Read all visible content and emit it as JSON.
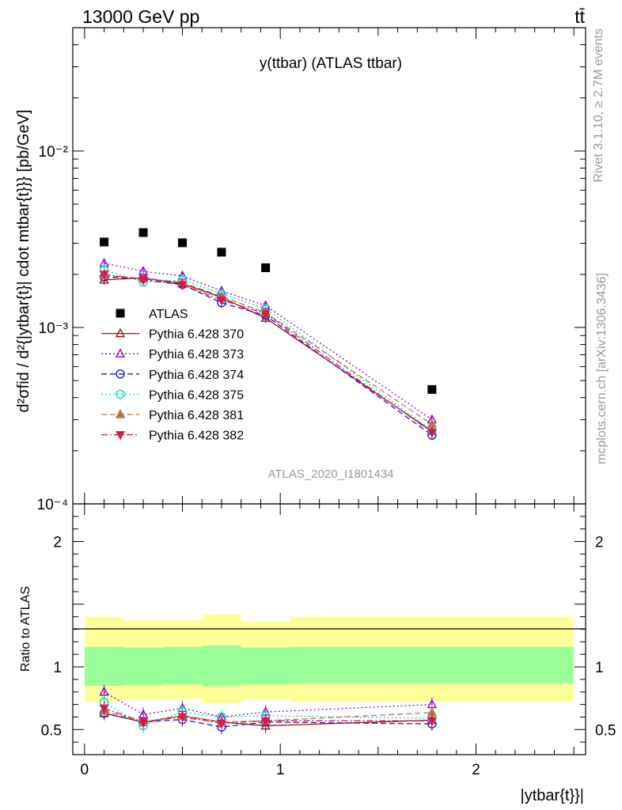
{
  "header": {
    "left": "13000 GeV pp",
    "right": "tt̄"
  },
  "side_labels": {
    "rivet": "Rivet 3.1.10, ≥ 2.7M events",
    "mcplots": "mcplots.cern.ch [arXiv:1306.3436]"
  },
  "chart_data": [
    {
      "type": "scatter",
      "panel": "main",
      "title": "y(ttbar) (ATLAS ttbar)",
      "analysis_label": "ATLAS_2020_I1801434",
      "ylabel": "d²σfid / d²{|ytbar{t}| cdot mtbar{t}}} [pb/GeV]",
      "yscale": "log",
      "xlim": [
        -0.06,
        2.56
      ],
      "ylim": [
        0.0001,
        0.05
      ],
      "y_tick_labels": [
        "10⁻⁴",
        "10⁻³",
        "10⁻²"
      ],
      "legend_position": "left-middle",
      "x": [
        0.1,
        0.3,
        0.5,
        0.7,
        0.925,
        1.775
      ],
      "series": [
        {
          "name": "ATLAS",
          "color": "#000000",
          "marker": "square",
          "values": [
            0.00305,
            0.00345,
            0.00302,
            0.00267,
            0.00218,
            0.000445
          ]
        },
        {
          "name": "Pythia 6.428 370",
          "color": "#a01010",
          "marker": "triangle-open",
          "line": "solid",
          "values": [
            0.00186,
            0.00191,
            0.00177,
            0.00148,
            0.00113,
            0.000258
          ]
        },
        {
          "name": "Pythia 6.428 373",
          "color": "#9400d3",
          "marker": "triangle-open",
          "line": "dotted",
          "values": [
            0.00231,
            0.00208,
            0.00196,
            0.00161,
            0.00133,
            0.0003
          ]
        },
        {
          "name": "Pythia 6.428 374",
          "color": "#1a1adf",
          "marker": "circle-open",
          "line": "dashed",
          "values": [
            0.00193,
            0.00189,
            0.00175,
            0.00138,
            0.00117,
            0.000245
          ]
        },
        {
          "name": "Pythia 6.428 375",
          "color": "#00d8c0",
          "marker": "circle-open",
          "line": "dotted",
          "values": [
            0.00212,
            0.00181,
            0.00186,
            0.00155,
            0.00128,
            0.00026
          ]
        },
        {
          "name": "Pythia 6.428 381",
          "color": "#b07a48",
          "marker": "triangle-filled",
          "line": "dashed",
          "values": [
            0.00197,
            0.0019,
            0.0018,
            0.0015,
            0.00121,
            0.000283
          ]
        },
        {
          "name": "Pythia 6.428 382",
          "color": "#dc1a4a",
          "marker": "triangle-down-filled",
          "line": "dashdot",
          "values": [
            0.002,
            0.00186,
            0.00174,
            0.00143,
            0.0012,
            0.000254
          ]
        }
      ]
    },
    {
      "type": "scatter",
      "panel": "ratio",
      "ylabel": "Ratio to ATLAS",
      "xlabel": "|ytbar{t}}|",
      "xlim": [
        -0.06,
        2.56
      ],
      "ylim": [
        0.3,
        2.3
      ],
      "x_ticks": [
        0,
        1,
        2
      ],
      "x_tick_labels": [
        "0",
        "1",
        "2"
      ],
      "y_ticks": [
        0.5,
        1,
        2
      ],
      "y_tick_labels": [
        "0.5",
        "1",
        "2"
      ],
      "bins": [
        [
          0,
          0.2
        ],
        [
          0.2,
          0.4
        ],
        [
          0.4,
          0.6
        ],
        [
          0.6,
          0.8
        ],
        [
          0.8,
          1.05
        ],
        [
          1.05,
          2.5
        ]
      ],
      "band_inner": [
        [
          0.85,
          1.16
        ],
        [
          0.855,
          1.155
        ],
        [
          0.86,
          1.16
        ],
        [
          0.845,
          1.17
        ],
        [
          0.86,
          1.155
        ],
        [
          0.87,
          1.16
        ]
      ],
      "band_outer": [
        [
          0.72,
          1.4
        ],
        [
          0.74,
          1.37
        ],
        [
          0.745,
          1.37
        ],
        [
          0.71,
          1.42
        ],
        [
          0.74,
          1.36
        ],
        [
          0.72,
          1.4
        ]
      ],
      "x": [
        0.1,
        0.3,
        0.5,
        0.7,
        0.925,
        1.775
      ],
      "series": [
        {
          "name": "Pythia 6.428 370",
          "values": [
            0.63,
            0.56,
            0.61,
            0.56,
            0.53,
            0.575
          ]
        },
        {
          "name": "Pythia 6.428 373",
          "values": [
            0.8,
            0.62,
            0.67,
            0.6,
            0.64,
            0.7
          ]
        },
        {
          "name": "Pythia 6.428 374",
          "values": [
            0.63,
            0.56,
            0.58,
            0.52,
            0.56,
            0.545
          ]
        },
        {
          "name": "Pythia 6.428 375",
          "values": [
            0.72,
            0.53,
            0.64,
            0.6,
            0.61,
            0.59
          ]
        },
        {
          "name": "Pythia 6.428 381",
          "values": [
            0.65,
            0.56,
            0.61,
            0.56,
            0.57,
            0.635
          ]
        },
        {
          "name": "Pythia 6.428 382",
          "values": [
            0.67,
            0.56,
            0.6,
            0.55,
            0.57,
            0.57
          ]
        }
      ]
    }
  ]
}
